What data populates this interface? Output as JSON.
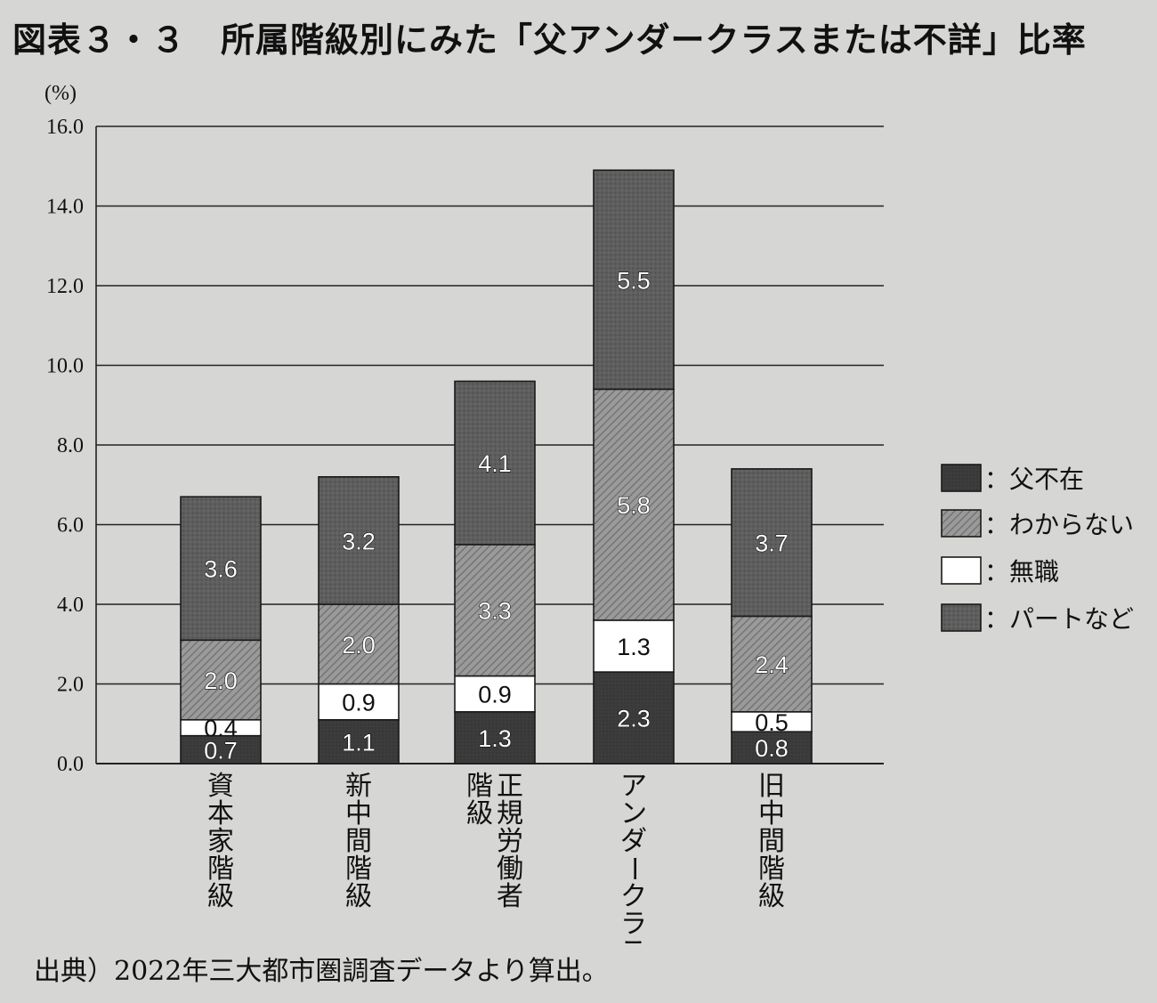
{
  "title": "図表３・３　所属階級別にみた「父アンダークラスまたは不詳」比率",
  "footer": "出典）2022年三大都市圏調査データより算出。",
  "chart_data": {
    "type": "bar",
    "stacked": true,
    "y_unit_label": "(%)",
    "ylim": [
      0,
      16
    ],
    "y_ticks": [
      "0.0",
      "2.0",
      "4.0",
      "6.0",
      "8.0",
      "10.0",
      "12.0",
      "14.0",
      "16.0"
    ],
    "grid": true,
    "legend_position": "right",
    "categories": [
      "資本家階級",
      "新中間階級",
      "正規労働者階級",
      "アンダークラス",
      "旧中間階級"
    ],
    "category_lines": [
      [
        "資本家階級"
      ],
      [
        "新中間階級"
      ],
      [
        "正規労働者",
        "階級"
      ],
      [
        "アンダークラス"
      ],
      [
        "旧中間階級"
      ]
    ],
    "series": [
      {
        "name": "父不在",
        "legend_label": "：父不在",
        "values": [
          0.7,
          1.1,
          1.3,
          2.3,
          0.8
        ],
        "color": "#3a3a3a",
        "pattern": "dark"
      },
      {
        "name": "無職",
        "legend_label": "：無職",
        "values": [
          0.4,
          0.9,
          0.9,
          1.3,
          0.5
        ],
        "color": "#ffffff",
        "pattern": "white"
      },
      {
        "name": "わからない",
        "legend_label": "：わからない",
        "values": [
          2.0,
          2.0,
          3.3,
          5.8,
          2.4
        ],
        "color": "#8a8a8a",
        "pattern": "hatch"
      },
      {
        "name": "パートなど",
        "legend_label": "：パートなど",
        "values": [
          3.6,
          3.2,
          4.1,
          5.5,
          3.7
        ],
        "color": "#5c5c5c",
        "pattern": "dots"
      }
    ],
    "legend_order": [
      "父不在",
      "わからない",
      "無職",
      "パートなど"
    ],
    "value_labels": [
      [
        "0.7",
        "0.4",
        "2.0",
        "3.6"
      ],
      [
        "1.1",
        "0.9",
        "2.0",
        "3.2"
      ],
      [
        "1.3",
        "0.9",
        "3.3",
        "4.1"
      ],
      [
        "2.3",
        "1.3",
        "5.8",
        "5.5"
      ],
      [
        "0.8",
        "0.5",
        "2.4",
        "3.7"
      ]
    ]
  }
}
